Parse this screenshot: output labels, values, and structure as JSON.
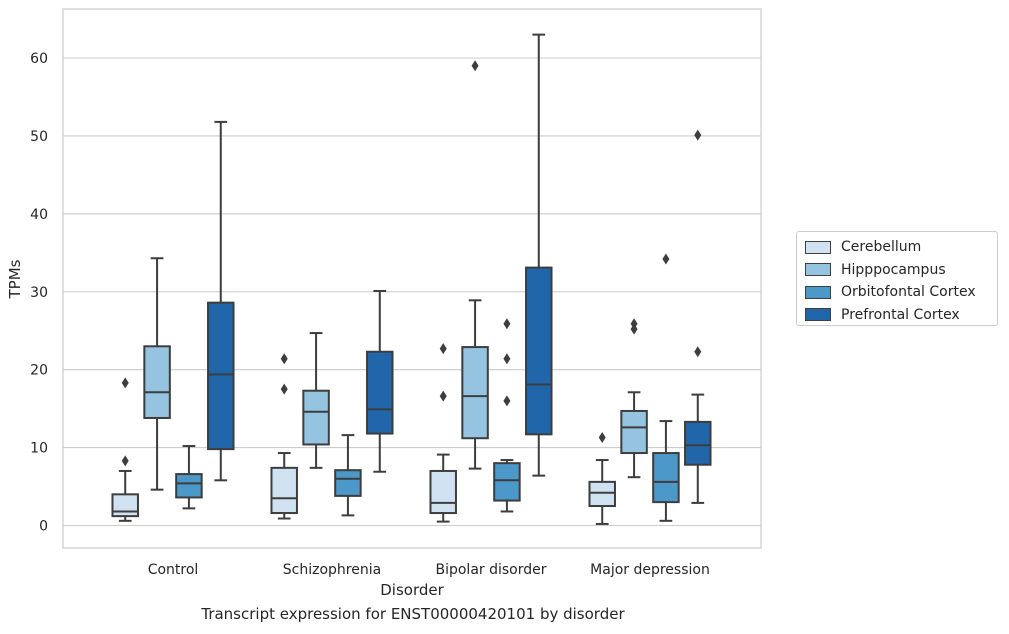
{
  "chart_data": {
    "type": "box",
    "caption": "Transcript expression for ENST00000420101 by disorder",
    "xlabel": "Disorder",
    "ylabel": "TPMs",
    "ylim": [
      -2.8,
      66
    ],
    "yticks": [
      0,
      10,
      20,
      30,
      40,
      50,
      60
    ],
    "grid": "horizontal",
    "legend_position": "right",
    "categories": [
      "Control",
      "Schizophrenia",
      "Bipolar disorder",
      "Major depression"
    ],
    "series": [
      {
        "name": "Cerebellum",
        "color": "#d0e1f2",
        "boxes": [
          {
            "whisker_low": 0.6,
            "q1": 1.2,
            "median": 1.8,
            "q3": 4.0,
            "whisker_high": 7.0,
            "outliers": [
              8.3,
              18.3
            ]
          },
          {
            "whisker_low": 0.9,
            "q1": 1.6,
            "median": 3.5,
            "q3": 7.4,
            "whisker_high": 9.3,
            "outliers": [
              17.5,
              21.4
            ]
          },
          {
            "whisker_low": 0.5,
            "q1": 1.6,
            "median": 2.9,
            "q3": 7.0,
            "whisker_high": 9.1,
            "outliers": [
              16.6,
              22.7
            ]
          },
          {
            "whisker_low": 0.2,
            "q1": 2.5,
            "median": 4.2,
            "q3": 5.6,
            "whisker_high": 8.4,
            "outliers": [
              11.3
            ]
          }
        ]
      },
      {
        "name": "Hipppocampus",
        "color": "#94c4df",
        "boxes": [
          {
            "whisker_low": 4.6,
            "q1": 13.8,
            "median": 17.1,
            "q3": 23.0,
            "whisker_high": 34.3,
            "outliers": []
          },
          {
            "whisker_low": 7.4,
            "q1": 10.4,
            "median": 14.6,
            "q3": 17.3,
            "whisker_high": 24.7,
            "outliers": []
          },
          {
            "whisker_low": 7.3,
            "q1": 11.2,
            "median": 16.6,
            "q3": 22.9,
            "whisker_high": 28.9,
            "outliers": [
              59.0
            ]
          },
          {
            "whisker_low": 6.2,
            "q1": 9.3,
            "median": 12.6,
            "q3": 14.7,
            "whisker_high": 17.1,
            "outliers": [
              25.2,
              25.9
            ]
          }
        ]
      },
      {
        "name": "Orbitofontal Cortex",
        "color": "#4b98c9",
        "boxes": [
          {
            "whisker_low": 2.2,
            "q1": 3.6,
            "median": 5.4,
            "q3": 6.6,
            "whisker_high": 10.2,
            "outliers": []
          },
          {
            "whisker_low": 1.3,
            "q1": 3.8,
            "median": 6.0,
            "q3": 7.1,
            "whisker_high": 11.6,
            "outliers": []
          },
          {
            "whisker_low": 1.8,
            "q1": 3.2,
            "median": 5.8,
            "q3": 8.0,
            "whisker_high": 8.4,
            "outliers": [
              16.0,
              21.4,
              25.9
            ]
          },
          {
            "whisker_low": 0.6,
            "q1": 3.0,
            "median": 5.6,
            "q3": 9.3,
            "whisker_high": 13.4,
            "outliers": [
              34.2
            ]
          }
        ]
      },
      {
        "name": "Prefrontal Cortex",
        "color": "#2166ab",
        "boxes": [
          {
            "whisker_low": 5.8,
            "q1": 9.8,
            "median": 19.4,
            "q3": 28.6,
            "whisker_high": 51.8,
            "outliers": []
          },
          {
            "whisker_low": 6.9,
            "q1": 11.8,
            "median": 14.9,
            "q3": 22.3,
            "whisker_high": 30.1,
            "outliers": []
          },
          {
            "whisker_low": 6.4,
            "q1": 11.7,
            "median": 18.1,
            "q3": 33.1,
            "whisker_high": 63.0,
            "outliers": []
          },
          {
            "whisker_low": 2.9,
            "q1": 7.8,
            "median": 10.3,
            "q3": 13.3,
            "whisker_high": 16.8,
            "outliers": [
              22.3,
              50.1
            ]
          }
        ]
      }
    ]
  }
}
